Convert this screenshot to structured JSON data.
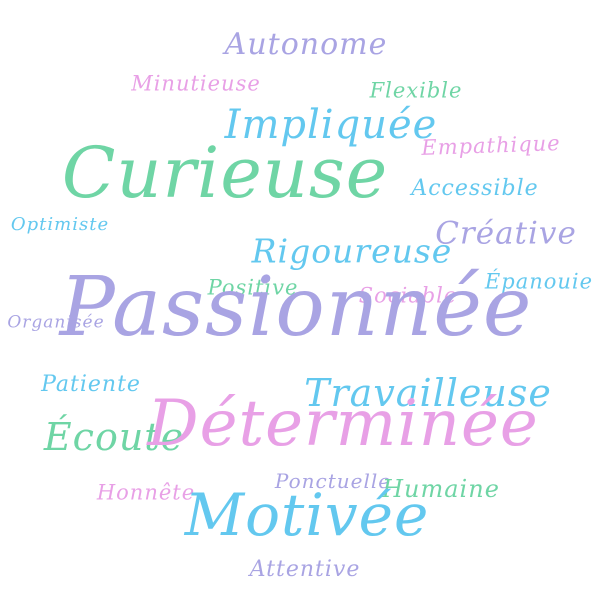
{
  "colors": {
    "violet": "#a9a4e3",
    "mint": "#6fd5a5",
    "sky": "#63c8ef",
    "pink": "#e8a0e6"
  },
  "words": [
    {
      "text": "Autonome",
      "color": "violet"
    },
    {
      "text": "Minutieuse",
      "color": "pink"
    },
    {
      "text": "Flexible",
      "color": "mint"
    },
    {
      "text": "Impliquée",
      "color": "sky"
    },
    {
      "text": "Empathique",
      "color": "pink"
    },
    {
      "text": "Curieuse",
      "color": "mint"
    },
    {
      "text": "Accessible",
      "color": "sky"
    },
    {
      "text": "Optimiste",
      "color": "sky"
    },
    {
      "text": "Créative",
      "color": "violet"
    },
    {
      "text": "Rigoureuse",
      "color": "sky"
    },
    {
      "text": "Positive",
      "color": "mint"
    },
    {
      "text": "Sociable",
      "color": "pink"
    },
    {
      "text": "Épanouie",
      "color": "sky"
    },
    {
      "text": "Organisée",
      "color": "violet"
    },
    {
      "text": "Passionnée",
      "color": "violet"
    },
    {
      "text": "Patiente",
      "color": "sky"
    },
    {
      "text": "Travailleuse",
      "color": "sky"
    },
    {
      "text": "Écoute",
      "color": "mint"
    },
    {
      "text": "Déterminée",
      "color": "pink"
    },
    {
      "text": "Ponctuelle",
      "color": "violet"
    },
    {
      "text": "Honnête",
      "color": "pink"
    },
    {
      "text": "Humaine",
      "color": "mint"
    },
    {
      "text": "Motivée",
      "color": "sky"
    },
    {
      "text": "Attentive",
      "color": "violet"
    }
  ]
}
